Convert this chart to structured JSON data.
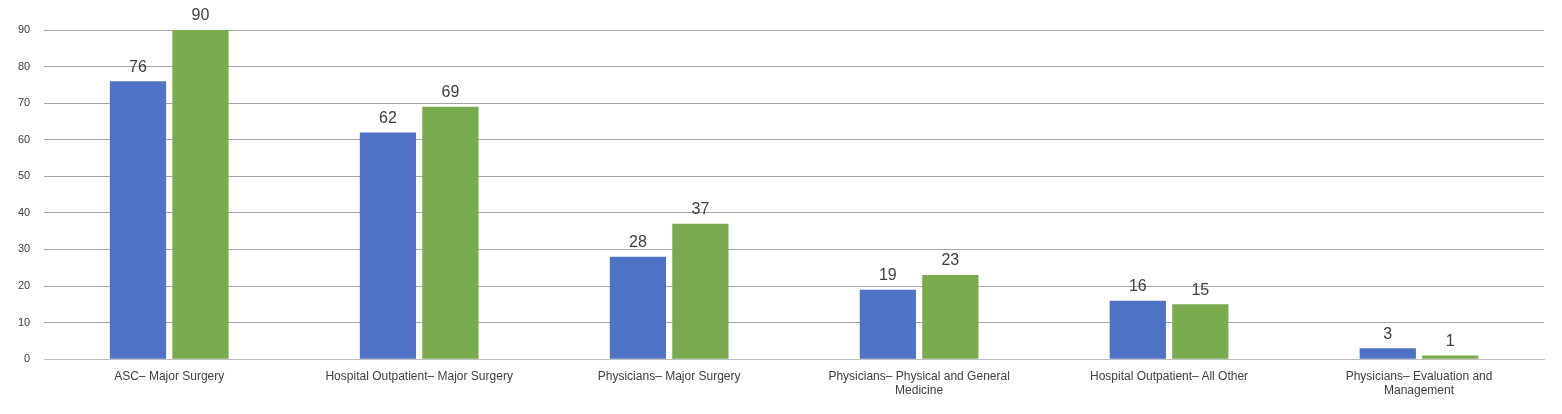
{
  "chart_data": {
    "type": "bar",
    "categories": [
      "ASC– Major Surgery",
      "Hospital Outpatient– Major Surgery",
      "Physicians– Major Surgery",
      "Physicians– Physical and General Medicine",
      "Hospital Outpatient– All Other",
      "Physicians– Evaluation and Management"
    ],
    "series": [
      {
        "color": "#4f72c4",
        "values": [
          76,
          62,
          28,
          19,
          16,
          3
        ]
      },
      {
        "color": "#79aa4d",
        "values": [
          90,
          69,
          37,
          23,
          15,
          1
        ]
      }
    ],
    "ylim": [
      0,
      90
    ],
    "yticks": [
      0,
      10,
      20,
      30,
      40,
      50,
      60,
      70,
      80,
      90
    ],
    "grid": "y",
    "data_labels": true
  }
}
